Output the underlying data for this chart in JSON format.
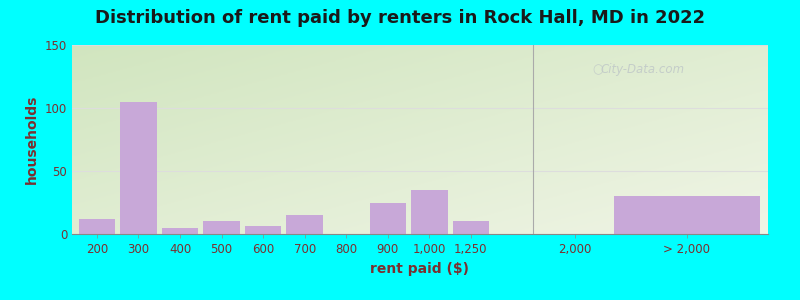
{
  "title": "Distribution of rent paid by renters in Rock Hall, MD in 2022",
  "xlabel": "rent paid ($)",
  "ylabel": "households",
  "bar_labels": [
    "200",
    "300",
    "400",
    "500",
    "600",
    "700",
    "800",
    "900",
    "1,000",
    "1,250"
  ],
  "bar_heights": [
    12,
    105,
    5,
    10,
    6,
    15,
    0,
    25,
    35,
    10
  ],
  "last_bar_height": 30,
  "last_bar_label": "> 2,000",
  "tick_2000_label": "2,000",
  "ylim": [
    0,
    150
  ],
  "yticks": [
    0,
    50,
    100,
    150
  ],
  "bar_color": "#c8a8d8",
  "outer_bg": "#00ffff",
  "title_color": "#1a1a1a",
  "axis_label_color": "#7a3030",
  "tick_label_color": "#7a3030",
  "grid_color": "#e0e0e0",
  "watermark_text": "City-Data.com",
  "title_fontsize": 13,
  "axis_label_fontsize": 10,
  "tick_fontsize": 8.5
}
